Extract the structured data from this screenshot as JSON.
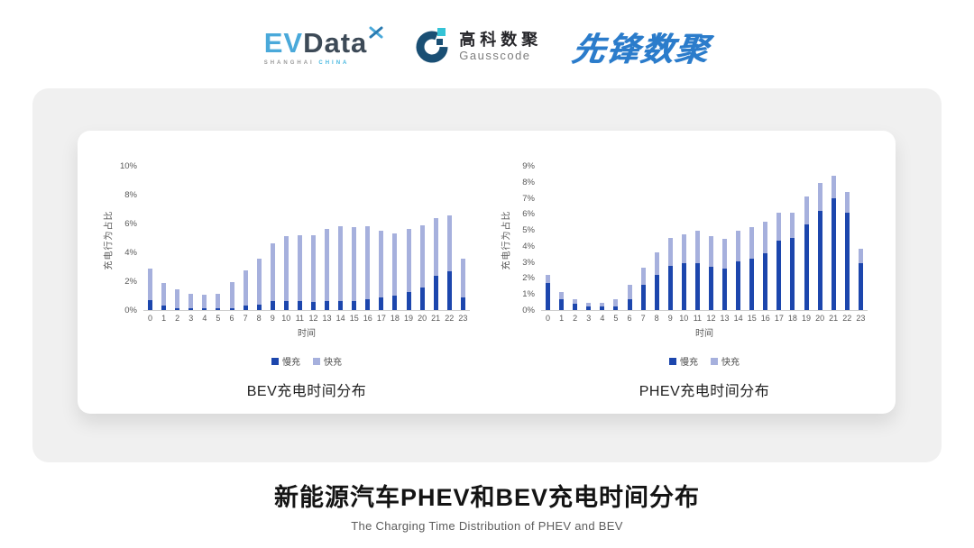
{
  "header": {
    "evdata": {
      "ev": "EV",
      "data": "Data",
      "tagline_left": "SHANGHAI",
      "tagline_right": "CHINA"
    },
    "gausscode": {
      "cn": "高科数聚",
      "en": "Gausscode"
    },
    "xianfeng": {
      "text": "先锋数聚"
    }
  },
  "footer": {
    "title": "新能源汽车PHEV和BEV充电时间分布",
    "subtitle": "The Charging Time Distribution of PHEV and BEV"
  },
  "colors": {
    "slow_charge": "#1c46ad",
    "fast_charge": "#a6b0dd",
    "evdata_blue": "#4aa9da",
    "evdata_dark": "#3d4a57",
    "gausscode_navy": "#1a4f74",
    "gausscode_cyan": "#35c3d6",
    "xianfeng_blue": "#2b7ccb"
  },
  "chart_data": [
    {
      "type": "bar",
      "stacked": true,
      "title": "BEV充电时间分布",
      "xlabel": "时间",
      "ylabel": "充电行为占比",
      "ylim": [
        0,
        10
      ],
      "ytick_step": 2,
      "ytick_suffix": "%",
      "grid": false,
      "legend_position": "bottom",
      "categories": [
        "0",
        "1",
        "2",
        "3",
        "4",
        "5",
        "6",
        "7",
        "8",
        "9",
        "10",
        "11",
        "12",
        "13",
        "14",
        "15",
        "16",
        "17",
        "18",
        "19",
        "20",
        "21",
        "22",
        "23"
      ],
      "series": [
        {
          "name": "慢充",
          "color": "#1c46ad",
          "values": [
            0.7,
            0.3,
            0.15,
            0.1,
            0.1,
            0.1,
            0.15,
            0.3,
            0.4,
            0.6,
            0.65,
            0.6,
            0.55,
            0.6,
            0.6,
            0.65,
            0.75,
            0.9,
            1.0,
            1.25,
            1.55,
            2.35,
            2.7,
            0.9
          ]
        },
        {
          "name": "快充",
          "color": "#a6b0dd",
          "values": [
            2.15,
            1.6,
            1.3,
            1.05,
            0.95,
            1.0,
            1.8,
            2.45,
            3.15,
            4.0,
            4.5,
            4.6,
            4.65,
            5.0,
            5.2,
            5.1,
            5.05,
            4.6,
            4.3,
            4.35,
            4.35,
            4.0,
            3.85,
            2.65
          ]
        }
      ]
    },
    {
      "type": "bar",
      "stacked": true,
      "title": "PHEV充电时间分布",
      "xlabel": "时间",
      "ylabel": "充电行为占比",
      "ylim": [
        0,
        9
      ],
      "ytick_step": 1,
      "ytick_suffix": "%",
      "grid": false,
      "legend_position": "bottom",
      "categories": [
        "0",
        "1",
        "2",
        "3",
        "4",
        "5",
        "6",
        "7",
        "8",
        "9",
        "10",
        "11",
        "12",
        "13",
        "14",
        "15",
        "16",
        "17",
        "18",
        "19",
        "20",
        "21",
        "22",
        "23"
      ],
      "series": [
        {
          "name": "慢充",
          "color": "#1c46ad",
          "values": [
            1.7,
            0.7,
            0.4,
            0.2,
            0.2,
            0.25,
            0.7,
            1.55,
            2.2,
            2.75,
            2.95,
            2.95,
            2.7,
            2.6,
            3.05,
            3.2,
            3.55,
            4.35,
            4.5,
            5.35,
            6.2,
            7.0,
            6.1,
            2.95
          ]
        },
        {
          "name": "快充",
          "color": "#a6b0dd",
          "values": [
            0.5,
            0.4,
            0.3,
            0.25,
            0.25,
            0.4,
            0.85,
            1.1,
            1.4,
            1.75,
            1.8,
            2.0,
            1.9,
            1.85,
            1.9,
            2.0,
            1.95,
            1.75,
            1.6,
            1.75,
            1.75,
            1.4,
            1.25,
            0.85
          ]
        }
      ]
    }
  ]
}
